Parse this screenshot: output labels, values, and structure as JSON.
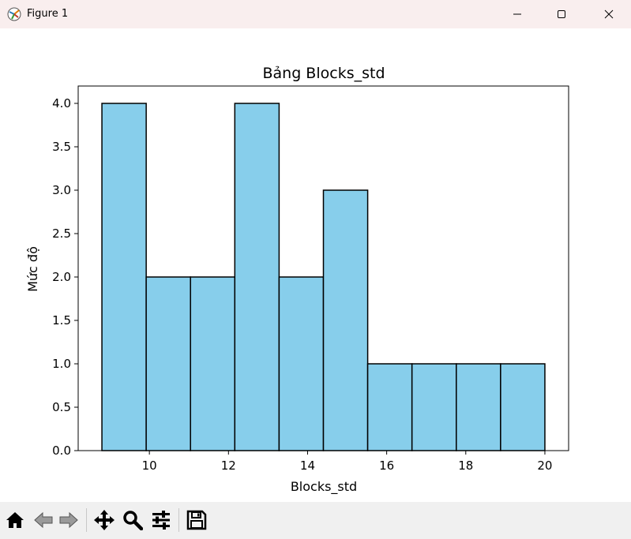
{
  "window": {
    "title": "Figure 1",
    "controls": [
      "minimize",
      "maximize",
      "close"
    ]
  },
  "toolbar": {
    "buttons": [
      "home-icon",
      "back-icon",
      "forward-icon",
      "pan-icon",
      "zoom-icon",
      "configure-subplots-icon",
      "save-icon"
    ]
  },
  "chart_data": {
    "type": "bar",
    "subtype": "histogram",
    "title": "Bảng Blocks_std",
    "xlabel": "Blocks_std",
    "ylabel": "Mức độ",
    "bin_edges": [
      8.8,
      9.92,
      11.04,
      12.16,
      13.28,
      14.4,
      15.52,
      16.64,
      17.76,
      18.88,
      20.0
    ],
    "values": [
      4,
      2,
      2,
      4,
      2,
      3,
      1,
      1,
      1,
      1
    ],
    "xlim": [
      8.2,
      20.6
    ],
    "ylim": [
      0,
      4.2
    ],
    "xticks": [
      "10",
      "12",
      "14",
      "16",
      "18",
      "20"
    ],
    "xtick_values": [
      10,
      12,
      14,
      16,
      18,
      20
    ],
    "yticks": [
      "0.0",
      "0.5",
      "1.0",
      "1.5",
      "2.0",
      "2.5",
      "3.0",
      "3.5",
      "4.0"
    ],
    "ytick_values": [
      0,
      0.5,
      1,
      1.5,
      2,
      2.5,
      3,
      3.5,
      4
    ],
    "bar_color": "#87ceeb",
    "edge_color": "#000000",
    "grid": false
  }
}
